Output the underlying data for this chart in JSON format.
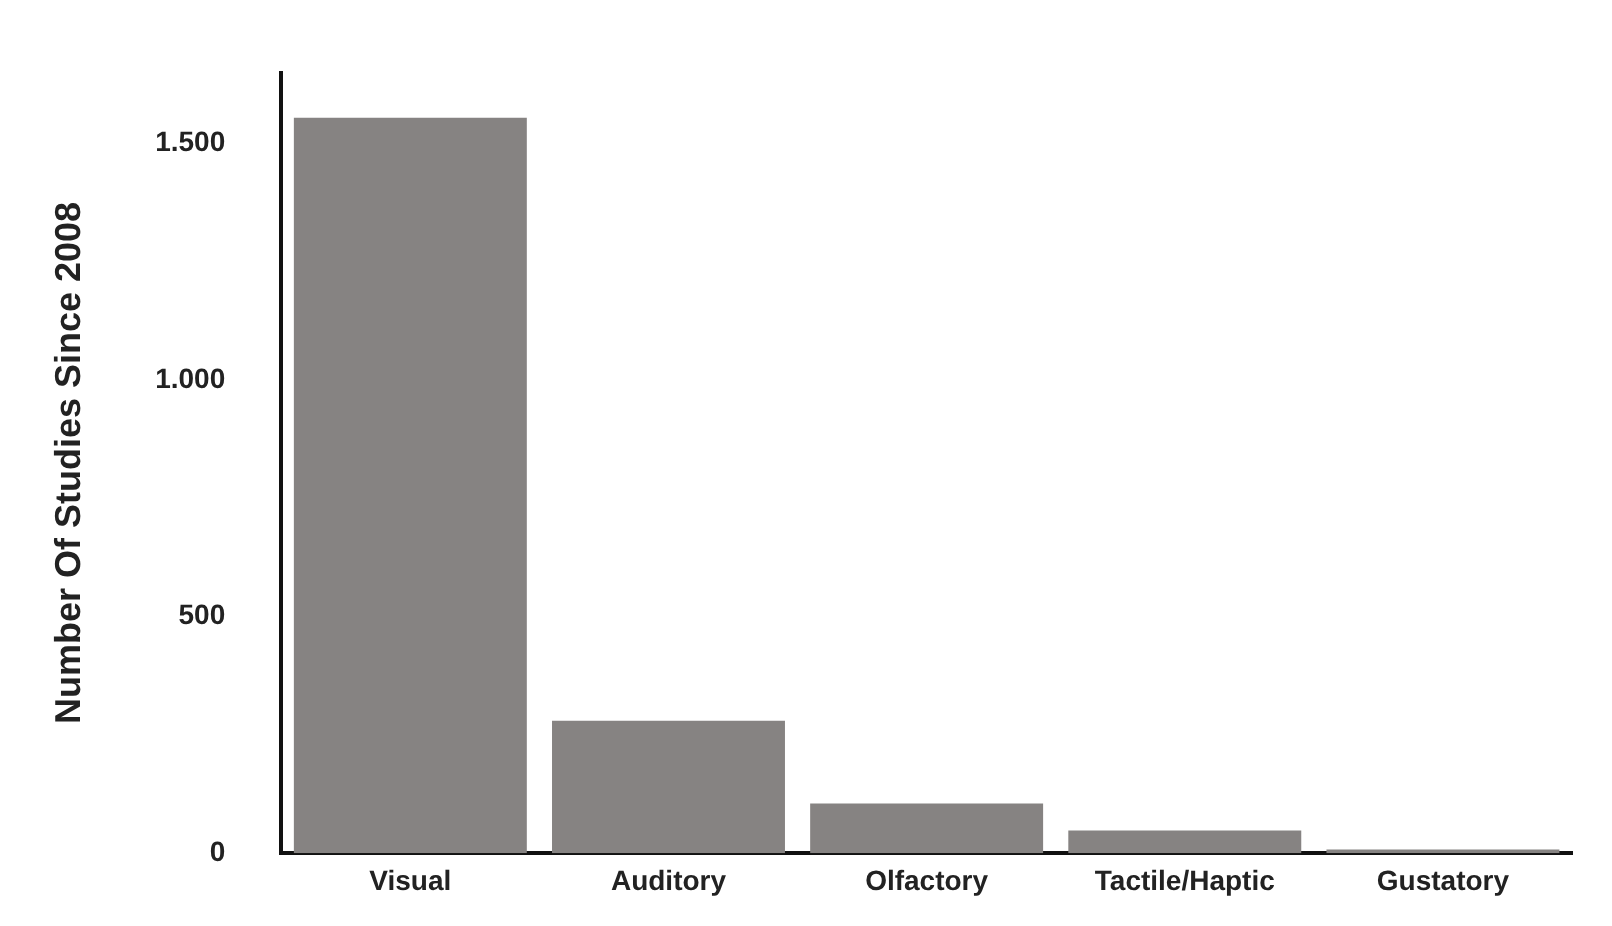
{
  "chart_data": {
    "type": "bar",
    "ylabel": "Number Of Studies Since 2008",
    "categories": [
      "Visual",
      "Auditory",
      "Olfactory",
      "Tactile/Haptic",
      "Gustatory"
    ],
    "values": [
      1555,
      280,
      105,
      48,
      8
    ],
    "color": "#868382",
    "ylim": [
      0,
      1650
    ],
    "yticks": [
      0,
      500,
      {
        "value": 1000,
        "label": "1.000"
      },
      {
        "value": 1500,
        "label": "1.500"
      }
    ],
    "grid": false,
    "legend": false
  }
}
